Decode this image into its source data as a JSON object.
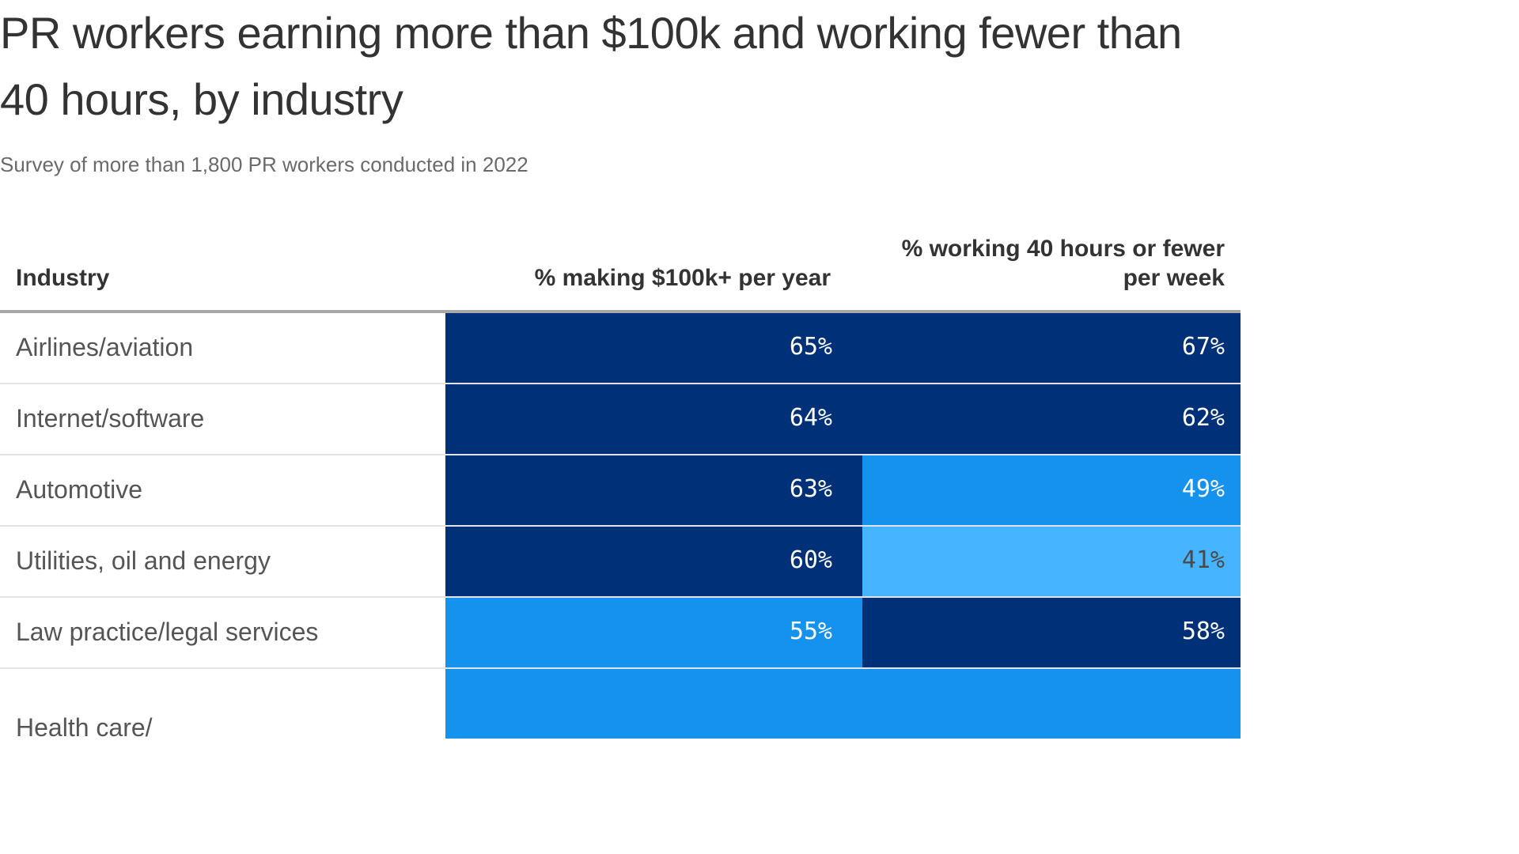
{
  "title": "PR workers earning more than $100k and working fewer than 40 hours, by industry",
  "subtitle": "Survey of more than 1,800 PR workers conducted in 2022",
  "chart_data": {
    "type": "table",
    "columns": [
      "Industry",
      "% making $100k+ per year",
      "% working 40 hours or fewer per week"
    ],
    "rows": [
      {
        "industry": "Airlines/aviation",
        "pct_100k": 65,
        "pct_40h": 67
      },
      {
        "industry": "Internet/software",
        "pct_100k": 64,
        "pct_40h": 62
      },
      {
        "industry": "Automotive",
        "pct_100k": 63,
        "pct_40h": 49
      },
      {
        "industry": "Utilities, oil and energy",
        "pct_100k": 60,
        "pct_40h": 41
      },
      {
        "industry": "Law practice/legal services",
        "pct_100k": 55,
        "pct_40h": 58
      },
      {
        "industry": "Health care/",
        "pct_100k": null,
        "pct_40h": null
      }
    ],
    "color_scale": {
      "high": "#003178",
      "mid": "#1592ee",
      "low": "#47b4ff",
      "text_light": "#ffffff",
      "text_dark": "#4a4a4a"
    }
  }
}
